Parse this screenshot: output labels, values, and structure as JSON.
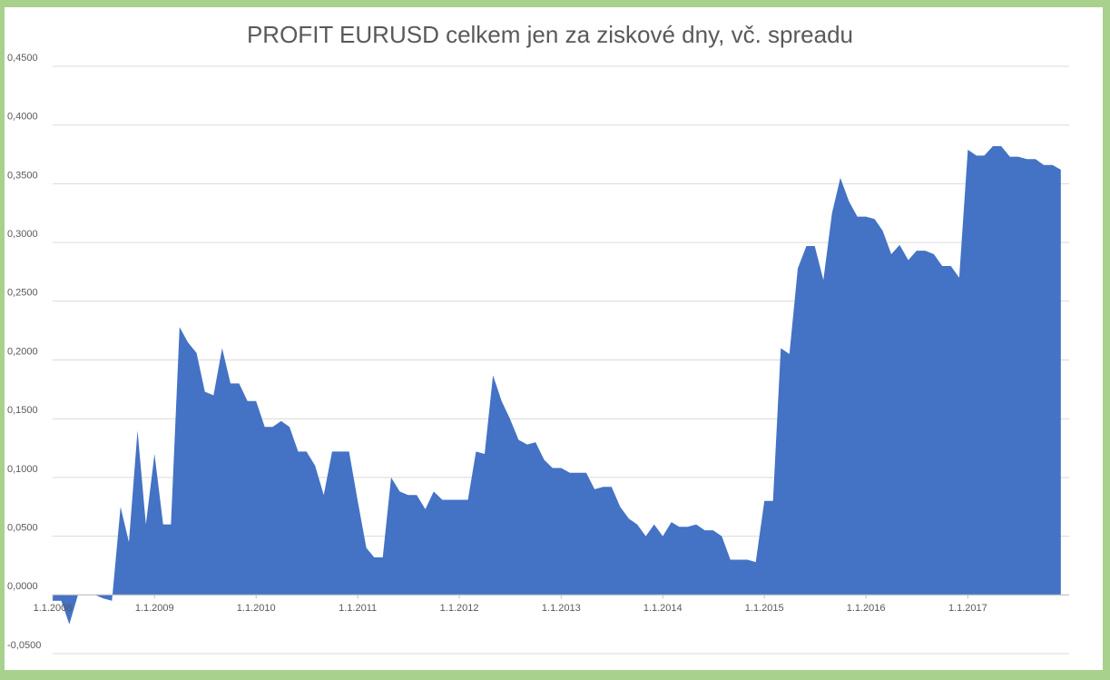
{
  "chart_data": {
    "type": "area",
    "title": "PROFIT EURUSD celkem jen za ziskové dny, vč. spreadu",
    "color": "#4472c4",
    "grid": true,
    "xlim": [
      "1.1.2008",
      "31.12.2017"
    ],
    "xticks": [
      "1.1.2008",
      "1.1.2009",
      "1.1.2010",
      "1.1.2011",
      "1.1.2012",
      "1.1.2013",
      "1.1.2014",
      "1.1.2015",
      "1.1.2016",
      "1.1.2017"
    ],
    "ylim": [
      -0.05,
      0.45
    ],
    "yticks": [
      {
        "value": -0.05,
        "label": "-0,0500"
      },
      {
        "value": 0,
        "label": "0,0000"
      },
      {
        "value": 0.05,
        "label": "0,0500"
      },
      {
        "value": 0.1,
        "label": "0,1000"
      },
      {
        "value": 0.15,
        "label": "0,1500"
      },
      {
        "value": 0.2,
        "label": "0,2000"
      },
      {
        "value": 0.25,
        "label": "0,2500"
      },
      {
        "value": 0.3,
        "label": "0,3000"
      },
      {
        "value": 0.35,
        "label": "0,3500"
      },
      {
        "value": 0.4,
        "label": "0,4000"
      },
      {
        "value": 0.45,
        "label": "0,4500"
      }
    ],
    "x": [
      "1.1.2008",
      "1.2.2008",
      "1.3.2008",
      "1.4.2008",
      "1.5.2008",
      "1.6.2008",
      "1.7.2008",
      "1.8.2008",
      "1.9.2008",
      "1.10.2008",
      "1.11.2008",
      "1.12.2008",
      "1.1.2009",
      "1.2.2009",
      "1.3.2009",
      "1.4.2009",
      "1.5.2009",
      "1.6.2009",
      "1.7.2009",
      "1.8.2009",
      "1.9.2009",
      "1.10.2009",
      "1.11.2009",
      "1.12.2009",
      "1.1.2010",
      "1.2.2010",
      "1.3.2010",
      "1.4.2010",
      "1.5.2010",
      "1.6.2010",
      "1.7.2010",
      "1.8.2010",
      "1.9.2010",
      "1.10.2010",
      "1.11.2010",
      "1.12.2010",
      "1.1.2011",
      "1.2.2011",
      "1.3.2011",
      "1.4.2011",
      "1.5.2011",
      "1.6.2011",
      "1.7.2011",
      "1.8.2011",
      "1.9.2011",
      "1.10.2011",
      "1.11.2011",
      "1.12.2011",
      "1.1.2012",
      "1.2.2012",
      "1.3.2012",
      "1.4.2012",
      "1.5.2012",
      "1.6.2012",
      "1.7.2012",
      "1.8.2012",
      "1.9.2012",
      "1.10.2012",
      "1.11.2012",
      "1.12.2012",
      "1.1.2013",
      "1.2.2013",
      "1.3.2013",
      "1.4.2013",
      "1.5.2013",
      "1.6.2013",
      "1.7.2013",
      "1.8.2013",
      "1.9.2013",
      "1.10.2013",
      "1.11.2013",
      "1.12.2013",
      "1.1.2014",
      "1.2.2014",
      "1.3.2014",
      "1.4.2014",
      "1.5.2014",
      "1.6.2014",
      "1.7.2014",
      "1.8.2014",
      "1.9.2014",
      "1.10.2014",
      "1.11.2014",
      "1.12.2014",
      "1.1.2015",
      "1.2.2015",
      "1.3.2015",
      "1.4.2015",
      "1.5.2015",
      "1.6.2015",
      "1.7.2015",
      "1.8.2015",
      "1.9.2015",
      "1.10.2015",
      "1.11.2015",
      "1.12.2015",
      "1.1.2016",
      "1.2.2016",
      "1.3.2016",
      "1.4.2016",
      "1.5.2016",
      "1.6.2016",
      "1.7.2016",
      "1.8.2016",
      "1.9.2016",
      "1.10.2016",
      "1.11.2016",
      "1.12.2016",
      "1.1.2017",
      "1.2.2017",
      "1.3.2017",
      "1.4.2017",
      "1.5.2017",
      "1.6.2017",
      "1.7.2017",
      "1.8.2017",
      "1.9.2017",
      "1.10.2017",
      "1.11.2017",
      "1.12.2017"
    ],
    "values": [
      -0.005,
      -0.005,
      -0.025,
      0,
      0,
      0,
      -0.003,
      -0.005,
      0.075,
      0.045,
      0.14,
      0.06,
      0.12,
      0.06,
      0.06,
      0.228,
      0.215,
      0.206,
      0.173,
      0.17,
      0.21,
      0.18,
      0.18,
      0.165,
      0.165,
      0.143,
      0.143,
      0.148,
      0.143,
      0.122,
      0.122,
      0.11,
      0.085,
      0.122,
      0.122,
      0.122,
      0.08,
      0.04,
      0.032,
      0.032,
      0.1,
      0.088,
      0.085,
      0.085,
      0.073,
      0.088,
      0.081,
      0.081,
      0.081,
      0.081,
      0.122,
      0.12,
      0.187,
      0.165,
      0.15,
      0.132,
      0.128,
      0.13,
      0.115,
      0.108,
      0.108,
      0.104,
      0.104,
      0.104,
      0.09,
      0.092,
      0.092,
      0.075,
      0.065,
      0.06,
      0.05,
      0.06,
      0.05,
      0.062,
      0.058,
      0.058,
      0.06,
      0.055,
      0.055,
      0.05,
      0.03,
      0.03,
      0.03,
      0.028,
      0.08,
      0.08,
      0.21,
      0.205,
      0.278,
      0.297,
      0.297,
      0.268,
      0.325,
      0.355,
      0.335,
      0.322,
      0.322,
      0.32,
      0.31,
      0.29,
      0.298,
      0.285,
      0.293,
      0.293,
      0.29,
      0.28,
      0.28,
      0.27,
      0.379,
      0.374,
      0.374,
      0.382,
      0.382,
      0.373,
      0.373,
      0.371,
      0.371,
      0.366,
      0.366,
      0.362
    ]
  }
}
